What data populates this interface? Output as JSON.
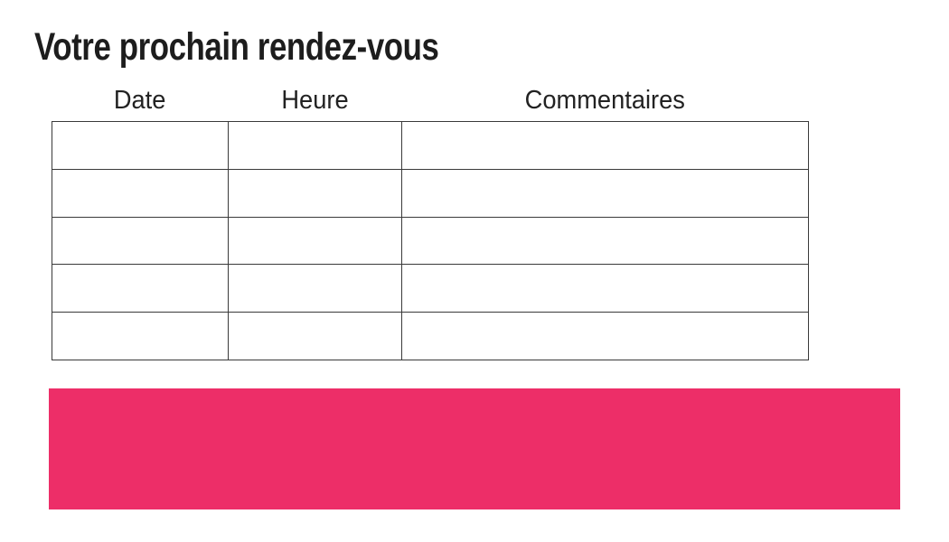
{
  "page": {
    "title": "Votre prochain rendez-vous"
  },
  "table": {
    "headers": [
      "Date",
      "Heure",
      "Commentaires"
    ],
    "rows": [
      [
        "",
        "",
        ""
      ],
      [
        "",
        "",
        ""
      ],
      [
        "",
        "",
        ""
      ],
      [
        "",
        "",
        ""
      ],
      [
        "",
        "",
        ""
      ]
    ]
  },
  "colors": {
    "accent_pink": "#ED2E68",
    "table_border": "#3A3A3A",
    "title_text": "#1D1D1D",
    "header_text": "#222222"
  }
}
